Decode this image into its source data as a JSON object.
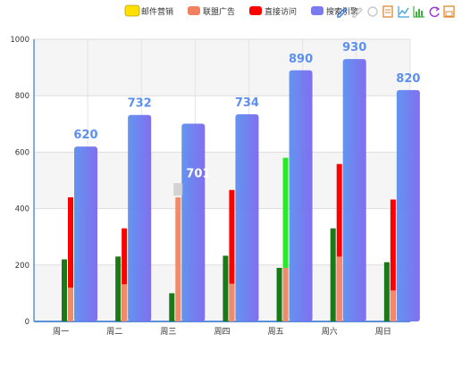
{
  "legend": {
    "items": [
      {
        "label": "邮件营销",
        "color": "#1a7a1a",
        "highlight": "#ffe000"
      },
      {
        "label": "联盟广告",
        "color": "#f08060"
      },
      {
        "label": "直接访问",
        "color": "#ff0000"
      },
      {
        "label": "搜索引擎",
        "color": "#7b7bf0"
      }
    ]
  },
  "toolbox": {
    "icons": [
      "mark-icon",
      "mark-undo-icon",
      "mark-clear-icon",
      "data-view-icon",
      "line-chart-icon",
      "bar-chart-icon",
      "restore-icon",
      "save-image-icon"
    ]
  },
  "chart_data": {
    "type": "bar",
    "categories": [
      "周一",
      "周二",
      "周三",
      "周四",
      "周五",
      "周六",
      "周日"
    ],
    "ylim": [
      0,
      1000
    ],
    "yticks": [
      0,
      200,
      400,
      600,
      800,
      1000
    ],
    "grid": true,
    "legend_position": "top-right",
    "series": [
      {
        "name": "邮件营销",
        "color": "#1a7a1a",
        "values": [
          220,
          230,
          100,
          233,
          190,
          330,
          210
        ]
      },
      {
        "name": "联盟广告",
        "color": "#f08a6a",
        "values": [
          120,
          132,
          440,
          134,
          190,
          230,
          110
        ]
      },
      {
        "name": "直接访问",
        "color": "#ff0000",
        "values": [
          440,
          330,
          null,
          466,
          null,
          558,
          432
        ]
      },
      {
        "name": "搜索引擎",
        "color_start": "#5b8ff0",
        "color_end": "#7b68ee",
        "values": [
          620,
          732,
          701,
          734,
          890,
          930,
          820
        ],
        "labels": [
          "620",
          "732",
          "701",
          "734",
          "890",
          "930",
          "820"
        ]
      }
    ],
    "highlight": {
      "category": "周五",
      "series": "直接访问",
      "value": 580,
      "color": "#22ee22"
    },
    "tooltip_mark": {
      "category": "周三",
      "value": 490
    }
  }
}
